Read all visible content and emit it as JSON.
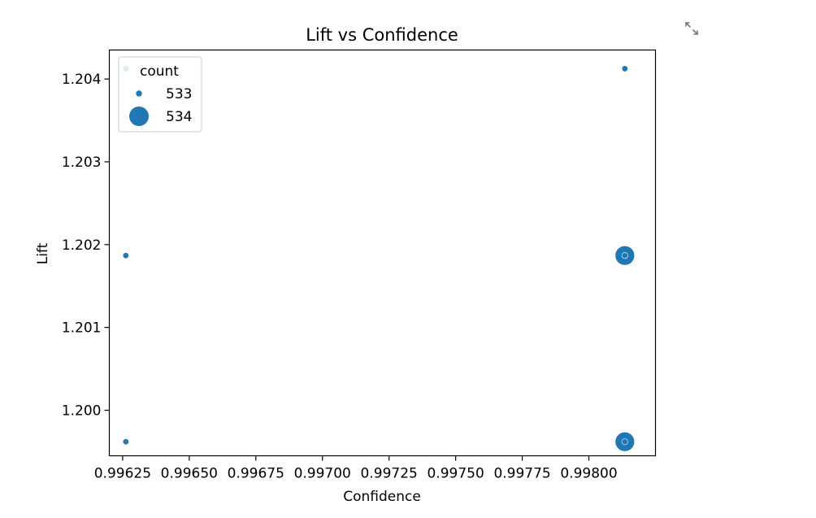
{
  "chart_data": {
    "type": "scatter",
    "title": "Lift vs Confidence",
    "xlabel": "Confidence",
    "ylabel": "Lift",
    "xlim": [
      0.9962,
      0.99825
    ],
    "ylim": [
      1.19945,
      1.20435
    ],
    "xticks": [
      0.99625,
      0.9965,
      0.99675,
      0.997,
      0.99725,
      0.9975,
      0.99775,
      0.998
    ],
    "xtick_labels": [
      "0.99625",
      "0.99650",
      "0.99675",
      "0.99700",
      "0.99725",
      "0.99750",
      "0.99775",
      "0.99800"
    ],
    "yticks": [
      1.2,
      1.201,
      1.202,
      1.203,
      1.204
    ],
    "ytick_labels": [
      "1.200",
      "1.201",
      "1.202",
      "1.203",
      "1.204"
    ],
    "grid": false,
    "size_legend": {
      "title": "count",
      "placement": "top-left",
      "entries": [
        {
          "label": "533",
          "size": "small"
        },
        {
          "label": "534",
          "size": "large"
        }
      ]
    },
    "points": [
      {
        "x": 0.996262,
        "y": 1.204125,
        "count": 533
      },
      {
        "x": 0.996262,
        "y": 1.201868,
        "count": 533
      },
      {
        "x": 0.996262,
        "y": 1.19962,
        "count": 533
      },
      {
        "x": 0.998135,
        "y": 1.204125,
        "count": 533
      },
      {
        "x": 0.998135,
        "y": 1.201868,
        "count": 534
      },
      {
        "x": 0.998135,
        "y": 1.201868,
        "count": 533
      },
      {
        "x": 0.998135,
        "y": 1.19962,
        "count": 534
      },
      {
        "x": 0.998135,
        "y": 1.19962,
        "count": 533
      }
    ],
    "marker_color": "#1f77b4"
  },
  "toolbar": {
    "expand_icon": "expand-icon"
  }
}
